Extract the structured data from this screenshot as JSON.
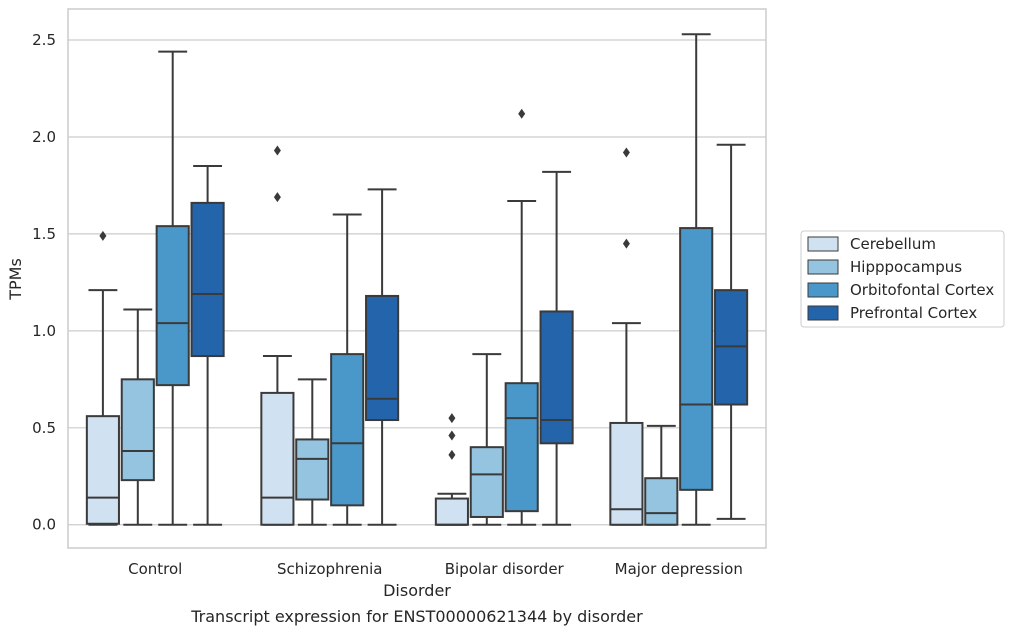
{
  "caption": "Transcript expression for ENST00000621344 by disorder",
  "chart_data": {
    "type": "box",
    "xlabel": "Disorder",
    "ylabel": "TPMs",
    "ylim": [
      -0.12,
      2.66
    ],
    "yticks": [
      0.0,
      0.5,
      1.0,
      1.5,
      2.0,
      2.5
    ],
    "ytick_labels": [
      "0.0",
      "0.5",
      "1.0",
      "1.5",
      "2.0",
      "2.5"
    ],
    "grid": true,
    "legend_position": "center-right",
    "categories": [
      "Control",
      "Schizophrenia",
      "Bipolar disorder",
      "Major depression"
    ],
    "series": [
      {
        "name": "Cerebellum",
        "color": "#d0e1f2",
        "boxes": [
          {
            "whislo": 0.0,
            "q1": 0.005,
            "med": 0.14,
            "q3": 0.56,
            "whishi": 1.21,
            "fliers": [
              1.49
            ]
          },
          {
            "whislo": 0.0,
            "q1": 0.0,
            "med": 0.14,
            "q3": 0.68,
            "whishi": 0.87,
            "fliers": [
              1.69,
              1.93
            ]
          },
          {
            "whislo": 0.0,
            "q1": 0.0,
            "med": 0.0,
            "q3": 0.135,
            "whishi": 0.16,
            "fliers": [
              0.36,
              0.46,
              0.55
            ]
          },
          {
            "whislo": 0.0,
            "q1": 0.0,
            "med": 0.08,
            "q3": 0.525,
            "whishi": 1.04,
            "fliers": [
              1.45,
              1.92
            ]
          }
        ]
      },
      {
        "name": "Hipppocampus",
        "color": "#94c4df",
        "boxes": [
          {
            "whislo": 0.0,
            "q1": 0.23,
            "med": 0.38,
            "q3": 0.75,
            "whishi": 1.11,
            "fliers": []
          },
          {
            "whislo": 0.0,
            "q1": 0.13,
            "med": 0.34,
            "q3": 0.44,
            "whishi": 0.75,
            "fliers": []
          },
          {
            "whislo": 0.0,
            "q1": 0.04,
            "med": 0.26,
            "q3": 0.4,
            "whishi": 0.88,
            "fliers": []
          },
          {
            "whislo": 0.0,
            "q1": 0.0,
            "med": 0.06,
            "q3": 0.24,
            "whishi": 0.51,
            "fliers": []
          }
        ]
      },
      {
        "name": "Orbitofontal Cortex",
        "color": "#4a98c9",
        "boxes": [
          {
            "whislo": 0.0,
            "q1": 0.72,
            "med": 1.04,
            "q3": 1.54,
            "whishi": 2.44,
            "fliers": []
          },
          {
            "whislo": 0.0,
            "q1": 0.1,
            "med": 0.42,
            "q3": 0.88,
            "whishi": 1.6,
            "fliers": []
          },
          {
            "whislo": 0.0,
            "q1": 0.07,
            "med": 0.55,
            "q3": 0.73,
            "whishi": 1.67,
            "fliers": [
              2.12
            ]
          },
          {
            "whislo": 0.0,
            "q1": 0.18,
            "med": 0.62,
            "q3": 1.53,
            "whishi": 2.53,
            "fliers": []
          }
        ]
      },
      {
        "name": "Prefrontal Cortex",
        "color": "#2464ab",
        "boxes": [
          {
            "whislo": 0.0,
            "q1": 0.87,
            "med": 1.19,
            "q3": 1.66,
            "whishi": 1.85,
            "fliers": []
          },
          {
            "whislo": 0.0,
            "q1": 0.54,
            "med": 0.65,
            "q3": 1.18,
            "whishi": 1.73,
            "fliers": []
          },
          {
            "whislo": 0.0,
            "q1": 0.42,
            "med": 0.54,
            "q3": 1.1,
            "whishi": 1.82,
            "fliers": []
          },
          {
            "whislo": 0.03,
            "q1": 0.62,
            "med": 0.92,
            "q3": 1.21,
            "whishi": 1.96,
            "fliers": []
          }
        ]
      }
    ]
  }
}
